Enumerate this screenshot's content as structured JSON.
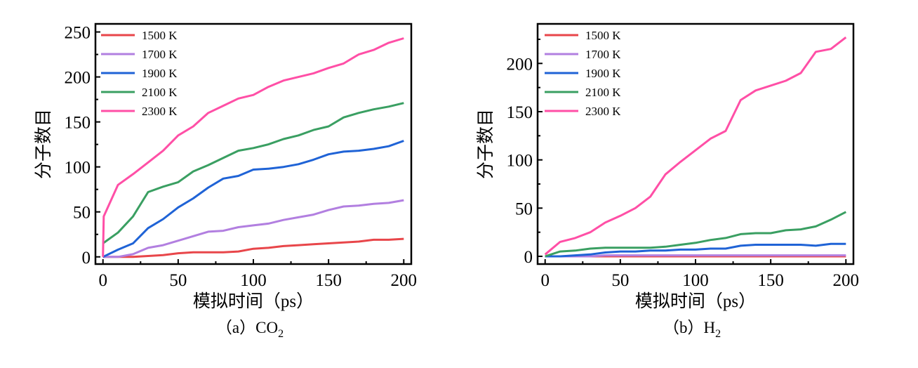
{
  "colors": {
    "1500 K": "#e8464a",
    "1700 K": "#b27fe0",
    "1900 K": "#1f63d6",
    "2100 K": "#3a9f62",
    "2300 K": "#ff4fa6"
  },
  "chart_data": [
    {
      "type": "line",
      "caption": "（a）CO",
      "caption_sub": "2",
      "xlabel": "模拟时间（ps）",
      "ylabel": "分子数目",
      "xlim": [
        -5,
        205
      ],
      "ylim": [
        -8,
        259
      ],
      "xticks": [
        0,
        50,
        100,
        150,
        200
      ],
      "yticks": [
        0,
        50,
        100,
        150,
        200,
        250
      ],
      "legend_position": "top-left",
      "grid": false,
      "x": [
        0,
        10,
        20,
        30,
        40,
        50,
        60,
        70,
        80,
        90,
        100,
        110,
        120,
        130,
        140,
        150,
        160,
        170,
        180,
        190,
        200
      ],
      "series": [
        {
          "name": "1500 K",
          "values": [
            0,
            0,
            0,
            1,
            2,
            4,
            5,
            5,
            5,
            6,
            9,
            10,
            12,
            13,
            14,
            15,
            16,
            17,
            19,
            19,
            20
          ]
        },
        {
          "name": "1700 K",
          "values": [
            0,
            0,
            3,
            10,
            13,
            18,
            23,
            28,
            29,
            33,
            35,
            37,
            41,
            44,
            47,
            52,
            56,
            57,
            59,
            60,
            63
          ]
        },
        {
          "name": "1900 K",
          "values": [
            0,
            8,
            15,
            32,
            42,
            55,
            65,
            77,
            87,
            90,
            97,
            98,
            100,
            103,
            108,
            114,
            117,
            118,
            120,
            123,
            129
          ]
        },
        {
          "name": "2100 K",
          "values": [
            15,
            27,
            45,
            72,
            78,
            83,
            95,
            102,
            110,
            118,
            121,
            125,
            131,
            135,
            141,
            145,
            155,
            160,
            164,
            167,
            171
          ]
        },
        {
          "name": "2300 K",
          "values": [
            45,
            80,
            92,
            105,
            118,
            135,
            145,
            160,
            168,
            176,
            180,
            189,
            196,
            200,
            204,
            210,
            215,
            225,
            230,
            238,
            243
          ]
        }
      ]
    },
    {
      "type": "line",
      "caption": "（b）H",
      "caption_sub": "2",
      "xlabel": "模拟时间（ps）",
      "ylabel": "分子数目",
      "xlim": [
        -5,
        205
      ],
      "ylim": [
        -8,
        241
      ],
      "xticks": [
        0,
        50,
        100,
        150,
        200
      ],
      "yticks": [
        0,
        50,
        100,
        150,
        200
      ],
      "legend_position": "top-left",
      "grid": false,
      "x": [
        0,
        10,
        20,
        30,
        40,
        50,
        60,
        70,
        80,
        90,
        100,
        110,
        120,
        130,
        140,
        150,
        160,
        170,
        180,
        190,
        200
      ],
      "series": [
        {
          "name": "1500 K",
          "values": [
            0,
            0,
            0,
            0,
            0,
            0,
            0,
            0,
            0,
            0,
            0,
            0,
            0,
            0,
            0,
            0,
            0,
            0,
            0,
            0,
            0
          ]
        },
        {
          "name": "1700 K",
          "values": [
            0,
            0,
            0,
            0,
            1,
            1,
            1,
            1,
            1,
            1,
            1,
            1,
            1,
            1,
            1,
            1,
            1,
            1,
            1,
            1,
            1
          ]
        },
        {
          "name": "1900 K",
          "values": [
            0,
            0,
            1,
            2,
            4,
            5,
            5,
            6,
            6,
            7,
            7,
            8,
            8,
            11,
            12,
            12,
            12,
            12,
            11,
            13,
            13
          ]
        },
        {
          "name": "2100 K",
          "values": [
            0,
            5,
            6,
            8,
            9,
            9,
            9,
            9,
            10,
            12,
            14,
            17,
            19,
            23,
            24,
            24,
            27,
            28,
            31,
            38,
            46
          ]
        },
        {
          "name": "2300 K",
          "values": [
            2,
            15,
            19,
            25,
            35,
            42,
            50,
            62,
            85,
            98,
            110,
            122,
            130,
            162,
            172,
            177,
            182,
            190,
            212,
            215,
            227
          ]
        }
      ]
    }
  ]
}
